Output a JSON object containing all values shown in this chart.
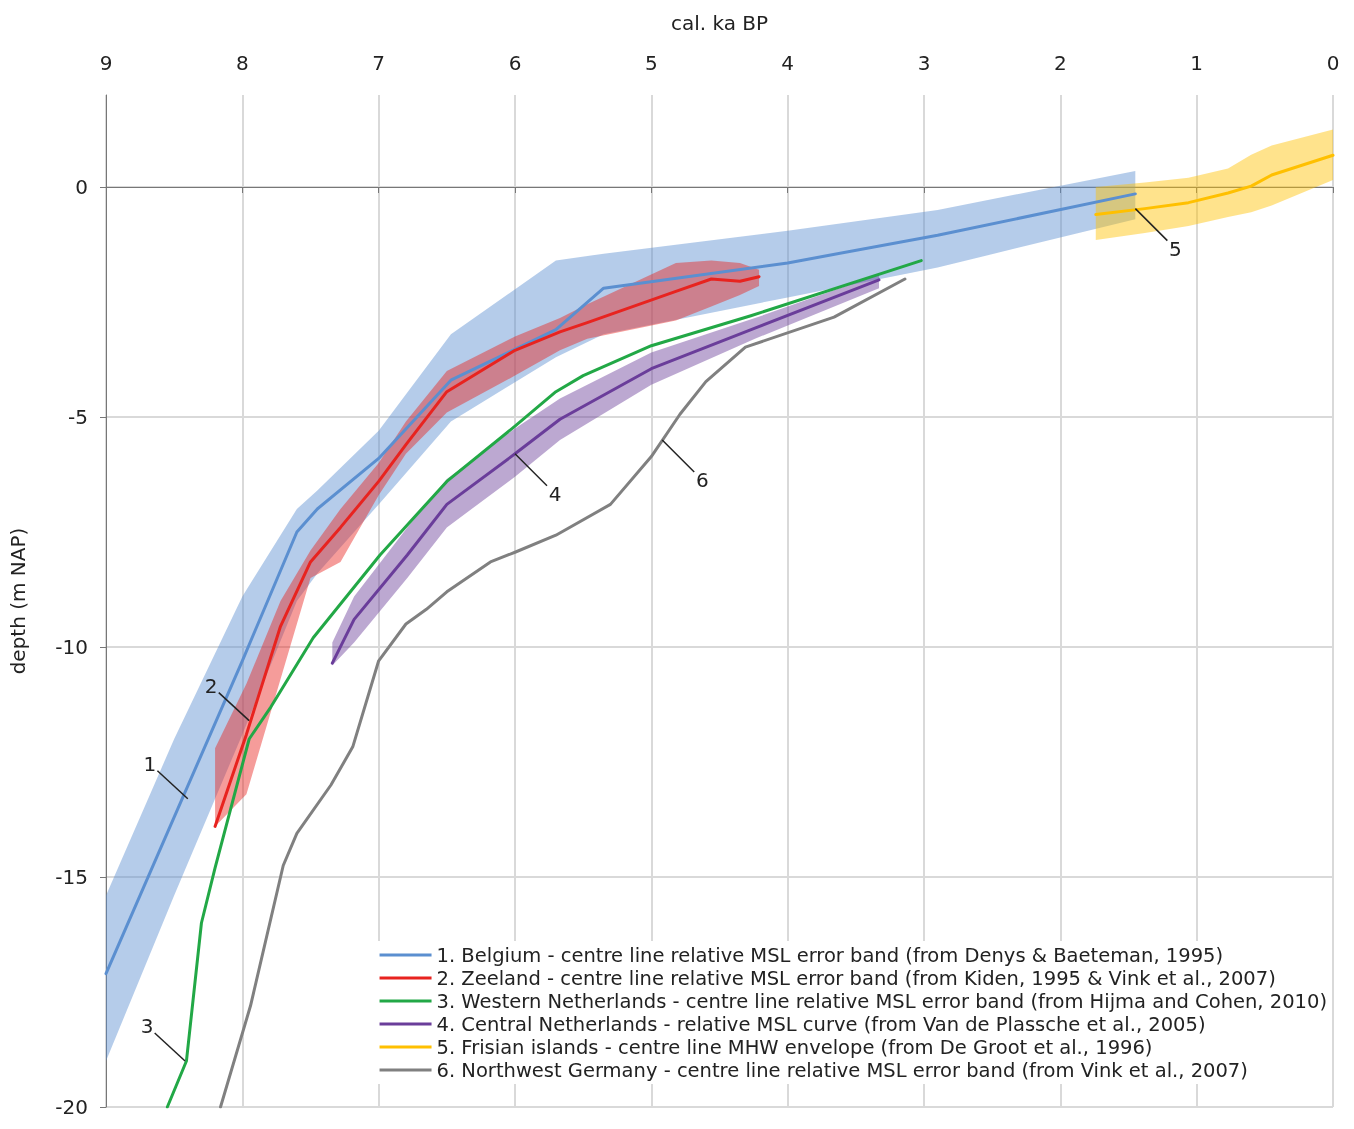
{
  "chart_data": {
    "type": "line",
    "xlabel": "cal. ka BP",
    "ylabel": "depth (m NAP)",
    "xlim": [
      9,
      0
    ],
    "xticks": [
      9,
      8,
      7,
      6,
      5,
      4,
      3,
      2,
      1,
      0
    ],
    "ylim": [
      -20,
      2
    ],
    "yticks": [
      -20,
      -15,
      -10,
      -5,
      0
    ],
    "grid": true,
    "legend": "bottom right",
    "marker": "none",
    "line_style": "solid",
    "series": [
      {
        "name": "1. Belgium - centre line relative MSL error band (from Denys & Baeteman, 1995)",
        "color": "#5b8fd0",
        "x": [
          9,
          8.5,
          8,
          7.6,
          7.45,
          7,
          6.47,
          5.7,
          5.35,
          4,
          2.9,
          1.45
        ],
        "values": [
          -17.1,
          -13.7,
          -10.3,
          -7.5,
          -7.0,
          -5.9,
          -4.2,
          -3.1,
          -2.2,
          -1.65,
          -1.05,
          -0.15
        ],
        "upper": [
          -15.4,
          -12.0,
          -8.9,
          -7.0,
          -6.6,
          -5.3,
          -3.2,
          -1.6,
          -1.45,
          -0.95,
          -0.5,
          0.35
        ],
        "lower": [
          -19.0,
          -15.4,
          -11.9,
          -9.0,
          -8.4,
          -6.9,
          -5.1,
          -3.7,
          -3.2,
          -2.4,
          -1.75,
          -0.7
        ]
      },
      {
        "name": "2. Zeeland - centre line relative MSL error band (from Kiden, 1995 & Vink et al., 2007)",
        "color": "#e8231f",
        "x": [
          8.2,
          7.97,
          7.72,
          7.5,
          7.28,
          7.0,
          6.8,
          6.5,
          6.0,
          5.67,
          5.47,
          4.82,
          4.56,
          4.35,
          4.21
        ],
        "values": [
          -13.9,
          -11.9,
          -9.55,
          -8.15,
          -7.4,
          -6.4,
          -5.6,
          -4.45,
          -3.55,
          -3.15,
          -2.95,
          -2.27,
          -2.0,
          -2.05,
          -1.95
        ],
        "upper": [
          -12.2,
          -10.8,
          -9.0,
          -7.9,
          -7.0,
          -6.0,
          -5.1,
          -4.0,
          -3.25,
          -2.85,
          -2.55,
          -1.65,
          -1.6,
          -1.65,
          -1.8
        ],
        "lower": [
          -13.9,
          -13.2,
          -10.7,
          -8.5,
          -8.15,
          -6.7,
          -5.8,
          -4.9,
          -4.1,
          -3.55,
          -3.3,
          -2.9,
          -2.6,
          -2.35,
          -2.15
        ]
      },
      {
        "name": "3. Western Netherlands - centre line relative MSL error band (from Hijma and Cohen, 2010)",
        "color": "#22a846",
        "x": [
          8.55,
          8.41,
          8.3,
          8.2,
          7.95,
          7.79,
          7.48,
          6.99,
          6.5,
          6.0,
          5.7,
          5.5,
          5.0,
          4.27,
          3.02
        ],
        "values": [
          -20,
          -19.0,
          -16.0,
          -14.8,
          -12.0,
          -11.3,
          -9.8,
          -8.0,
          -6.4,
          -5.2,
          -4.45,
          -4.1,
          -3.45,
          -2.8,
          -1.6
        ]
      },
      {
        "name": "4. Central Netherlands - relative MSL curve (from Van de Plassche et al., 2005)",
        "color": "#6a3d9a",
        "x": [
          7.34,
          7.18,
          6.79,
          6.5,
          6.0,
          5.67,
          5.0,
          4.24,
          3.33
        ],
        "values": [
          -10.35,
          -9.4,
          -8.0,
          -6.9,
          -5.8,
          -5.05,
          -3.95,
          -3.07,
          -2.02
        ],
        "upper": [
          -9.9,
          -8.9,
          -7.4,
          -6.35,
          -5.25,
          -4.6,
          -3.6,
          -2.85,
          -1.9
        ],
        "lower": [
          -10.4,
          -9.9,
          -8.5,
          -7.4,
          -6.3,
          -5.5,
          -4.3,
          -3.3,
          -2.2
        ]
      },
      {
        "name": "5. Frisian islands - centre line MHW envelope (from De Groot et al., 1996)",
        "color": "#ffc000",
        "x": [
          1.74,
          1.38,
          1.06,
          0.77,
          0.6,
          0.45,
          0
        ],
        "values": [
          -0.6,
          -0.47,
          -0.34,
          -0.13,
          0.02,
          0.26,
          0.69
        ],
        "upper": [
          0,
          0.1,
          0.2,
          0.4,
          0.7,
          0.9,
          1.25
        ],
        "lower": [
          -1.15,
          -1.0,
          -0.85,
          -0.65,
          -0.55,
          -0.4,
          0.15
        ]
      },
      {
        "name": "6. Northwest Germany - centre line relative MSL error band (from Vink et al., 2007)",
        "color": "#808080",
        "x": [
          8.16,
          7.94,
          7.7,
          7.6,
          7.35,
          7.19,
          7.0,
          6.8,
          6.65,
          6.5,
          6.18,
          6.0,
          5.7,
          5.3,
          5.0,
          4.79,
          4.6,
          4.31,
          3.66,
          3.14
        ],
        "values": [
          -20,
          -17.8,
          -14.75,
          -14.05,
          -13.0,
          -12.17,
          -10.3,
          -9.5,
          -9.18,
          -8.8,
          -8.15,
          -7.94,
          -7.57,
          -6.9,
          -5.86,
          -4.94,
          -4.23,
          -3.48,
          -2.83,
          -2.0
        ]
      }
    ],
    "annotations": [
      {
        "text": "1",
        "x": 8.4,
        "y": -13.3
      },
      {
        "text": "2",
        "x": 7.95,
        "y": -11.6
      },
      {
        "text": "3",
        "x": 8.42,
        "y": -19.0
      },
      {
        "text": "4",
        "x": 6.0,
        "y": -5.8
      },
      {
        "text": "5",
        "x": 1.45,
        "y": -0.47
      },
      {
        "text": "6",
        "x": 4.92,
        "y": -5.5
      }
    ]
  }
}
